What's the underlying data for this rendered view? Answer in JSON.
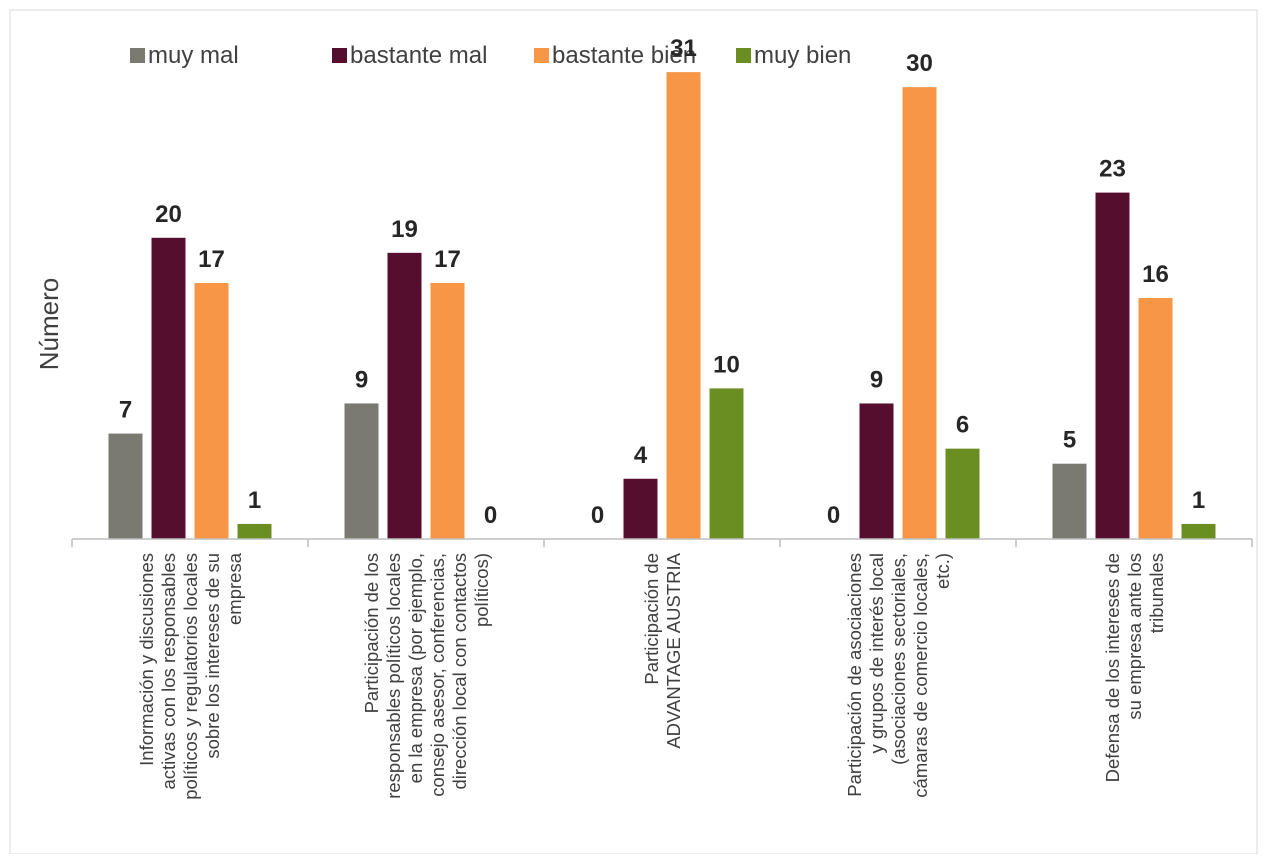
{
  "chart_data": {
    "type": "bar",
    "ylabel": "Número",
    "ylim": [
      0,
      33
    ],
    "grid": false,
    "legend_position": "top",
    "categories": [
      [
        "Información y discusiones",
        "activas con los responsables",
        "políticos y regulatorios locales",
        "sobre los intereses de su",
        "empresa"
      ],
      [
        "Participación de los",
        "responsables políticos locales",
        "en la empresa (por ejemplo,",
        "consejo asesor, conferencias,",
        "dirección local con contactos",
        "políticos)"
      ],
      [
        "Participación de",
        "ADVANTAGE AUSTRIA"
      ],
      [
        "Participación de asociaciones",
        "y grupos de interés local",
        "(asociaciones sectoriales,",
        "cámaras de comercio locales,",
        "etc.)"
      ],
      [
        "Defensa de los intereses de",
        "su empresa ante los",
        "tribunales"
      ]
    ],
    "series": [
      {
        "name": "muy mal",
        "color": "#7a7a72",
        "values": [
          7,
          9,
          0,
          0,
          5
        ]
      },
      {
        "name": "bastante mal",
        "color": "#560e2f",
        "values": [
          20,
          19,
          4,
          9,
          23
        ]
      },
      {
        "name": "bastante bien",
        "color": "#f79646",
        "values": [
          17,
          17,
          31,
          30,
          16
        ]
      },
      {
        "name": "muy bien",
        "color": "#6b8e23",
        "values": [
          1,
          0,
          10,
          6,
          1
        ]
      }
    ]
  }
}
